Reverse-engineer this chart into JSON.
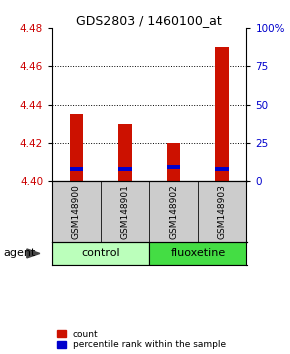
{
  "title": "GDS2803 / 1460100_at",
  "samples": [
    "GSM148900",
    "GSM148901",
    "GSM148902",
    "GSM148903"
  ],
  "red_values": [
    4.435,
    4.43,
    4.42,
    4.47
  ],
  "blue_values": [
    4.405,
    4.405,
    4.406,
    4.405
  ],
  "ylim": [
    4.4,
    4.48
  ],
  "yticks_left": [
    4.4,
    4.42,
    4.44,
    4.46,
    4.48
  ],
  "yticks_right": [
    0,
    25,
    50,
    75,
    100
  ],
  "bar_width": 0.28,
  "red_color": "#cc1100",
  "blue_color": "#0000cc",
  "control_color": "#bbffbb",
  "fluoxetine_color": "#44dd44",
  "sample_bg_color": "#cccccc",
  "grid_color": "#000000",
  "title_color": "black",
  "left_tick_color": "#cc0000",
  "right_tick_color": "#0000cc",
  "agent_label": "agent",
  "legend_count": "count",
  "legend_percentile": "percentile rank within the sample",
  "group_info": [
    {
      "label": "control",
      "start": 0,
      "end": 1,
      "color": "#bbffbb"
    },
    {
      "label": "fluoxetine",
      "start": 2,
      "end": 3,
      "color": "#44dd44"
    }
  ]
}
